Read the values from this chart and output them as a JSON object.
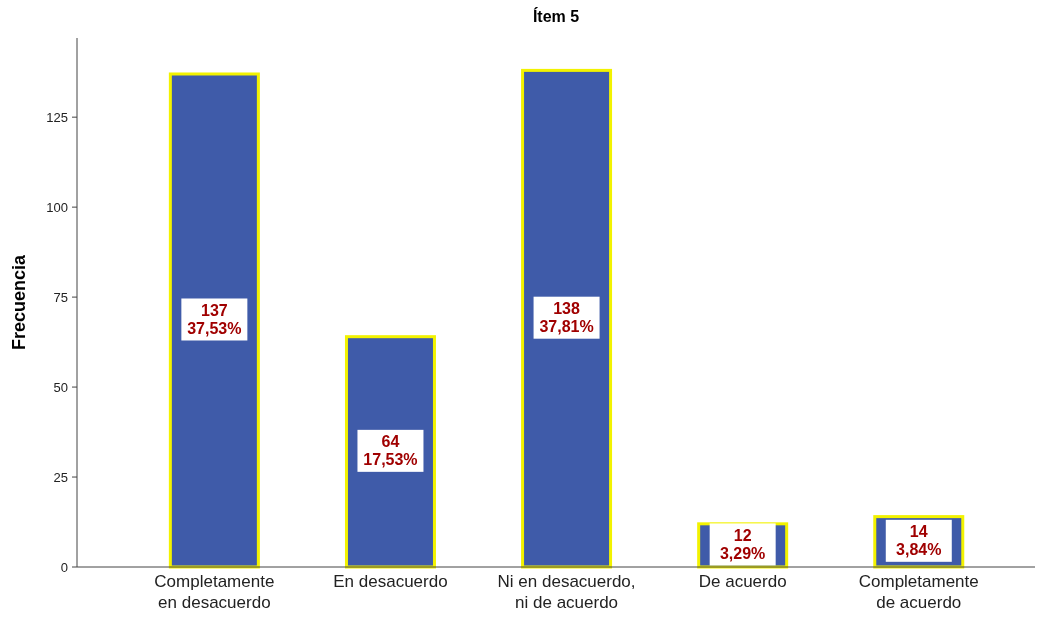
{
  "chart_data": {
    "type": "bar",
    "title": "Ítem 5",
    "ylabel": "Frecuencia",
    "categories": [
      "Completamente\nen desacuerdo",
      "En desacuerdo",
      "Ni en desacuerdo,\nni de acuerdo",
      "De acuerdo",
      "Completamente\nde acuerdo"
    ],
    "values": [
      137,
      64,
      138,
      12,
      14
    ],
    "value_labels": [
      "137\n37,53%",
      "64\n17,53%",
      "138\n37,81%",
      "12\n3,29%",
      "14\n3,84%"
    ],
    "color": "#3f5ba9",
    "ylim": [
      0,
      147
    ],
    "yticks": [
      0,
      25,
      50,
      75,
      100,
      125
    ]
  }
}
